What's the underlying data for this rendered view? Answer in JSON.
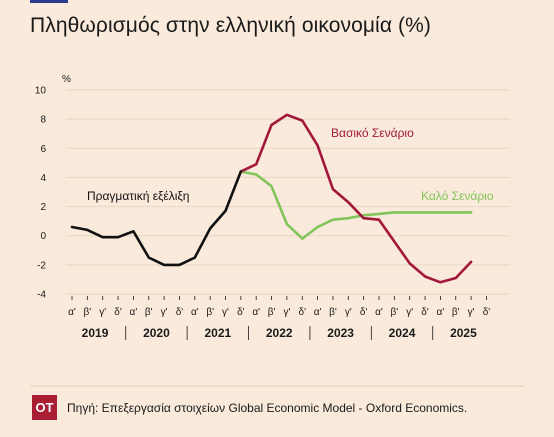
{
  "title": "Πληθωρισμός στην ελληνική οικονομία (%)",
  "source": "Πηγή: Επεξεργασία στοιχείων Global Economic Model - Oxford Economics.",
  "logo_text": "OT",
  "colors": {
    "background": "#f9eadb",
    "actual": "#111111",
    "base": "#a3173a",
    "good": "#82c55a",
    "grid": "#e9d6c3",
    "logo": "#a91e33"
  },
  "chart_data": {
    "type": "line",
    "ylabel": "%",
    "ylim": [
      -4,
      10
    ],
    "yticks": [
      "10",
      "8",
      "6",
      "4",
      "2",
      "0",
      "-2",
      "-4"
    ],
    "quarter_labels": [
      "α'",
      "β'",
      "γ'",
      "δ'",
      "α'",
      "β'",
      "γ'",
      "δ'",
      "α'",
      "β'",
      "γ'",
      "δ'",
      "α'",
      "β'",
      "γ'",
      "δ'",
      "α'",
      "β'",
      "γ'",
      "δ'",
      "α'",
      "β'",
      "γ'",
      "δ'",
      "α'",
      "β'",
      "γ'",
      "δ'"
    ],
    "years": [
      "2019",
      "2020",
      "2021",
      "2022",
      "2023",
      "2024",
      "2025"
    ],
    "grid": true,
    "series": [
      {
        "name": "Πραγματική εξέλιξη",
        "color": "#111111",
        "points": [
          [
            0,
            0.6
          ],
          [
            1,
            0.4
          ],
          [
            2,
            -0.1
          ],
          [
            3,
            -0.1
          ],
          [
            4,
            0.3
          ],
          [
            5,
            -1.5
          ],
          [
            6,
            -2.0
          ],
          [
            7,
            -2.0
          ],
          [
            8,
            -1.5
          ],
          [
            9,
            0.5
          ],
          [
            10,
            1.7
          ],
          [
            11,
            4.4
          ]
        ]
      },
      {
        "name": "Βασικό Σενάριο",
        "color": "#a3173a",
        "points": [
          [
            11,
            4.4
          ],
          [
            12,
            4.9
          ],
          [
            13,
            7.6
          ],
          [
            14,
            8.3
          ],
          [
            15,
            7.9
          ],
          [
            16,
            6.2
          ],
          [
            17,
            3.2
          ],
          [
            18,
            2.3
          ],
          [
            19,
            1.2
          ],
          [
            20,
            1.1
          ],
          [
            21,
            -0.4
          ],
          [
            22,
            -1.9
          ],
          [
            23,
            -2.8
          ],
          [
            24,
            -3.2
          ],
          [
            25,
            -2.9
          ],
          [
            26,
            -1.8
          ]
        ]
      },
      {
        "name": "Καλό Σενάριο",
        "color": "#82c55a",
        "points": [
          [
            11,
            4.4
          ],
          [
            12,
            4.2
          ],
          [
            13,
            3.4
          ],
          [
            14,
            0.8
          ],
          [
            15,
            -0.2
          ],
          [
            16,
            0.6
          ],
          [
            17,
            1.1
          ],
          [
            18,
            1.2
          ],
          [
            19,
            1.4
          ],
          [
            20,
            1.5
          ],
          [
            21,
            1.6
          ],
          [
            22,
            1.6
          ],
          [
            23,
            1.6
          ],
          [
            24,
            1.6
          ],
          [
            25,
            1.6
          ],
          [
            26,
            1.6
          ]
        ]
      }
    ]
  }
}
